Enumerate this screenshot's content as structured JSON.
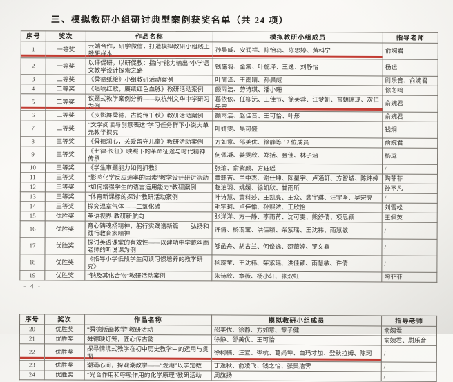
{
  "page": {
    "title": "三、模拟教研小组研讨典型案例获奖名单（共 24 项）",
    "page_number": "- 4 -",
    "accent_color": "#bb2218",
    "underline_note_color": "#bb2218"
  },
  "columns": [
    "序号",
    "奖次",
    "作品名称",
    "模拟教研小组成员",
    "指导老师"
  ],
  "tables": [
    {
      "rows": [
        {
          "seq": "1",
          "award": "一等奖",
          "title": "云端合作，研学微信，打造模拟教研小组线上教研样本",
          "members": "孙晨威、安润祥、陈怡蕊、陈思婷、黄科宁",
          "teacher": "俞婉君",
          "underlined": true
        },
        {
          "seq": "2",
          "award": "一等奖",
          "title": "以评促研，以研促教：指向“能力输出”小学语文教学设计探索之路",
          "members": "钱施羽、金棠、叶旎泽、王逸、刘静怡",
          "teacher": "杨运",
          "underlined": false
        },
        {
          "seq": "3",
          "award": "二等奖",
          "title": "《舜德纸绘》小组教研活动案例",
          "members": "叶旎泽、王雨晴、孙晨威",
          "teacher": "尉乐音、俞婉君",
          "underlined": false
        },
        {
          "seq": "4",
          "award": "二等奖",
          "title": "《唱响红歌，赓续红色血脉》教研活动案例",
          "members": "颜雨洁、劳诗琪、潘小珊",
          "teacher": "徐冬鸣",
          "underlined": false
        },
        {
          "seq": "5",
          "award": "二等奖",
          "title": "议题式教学案例分析——以杭州文华中学研习为例",
          "members": "葛依依、任柳沅、王佳节、徐芙蓉、江梦妍、普朝琼琼、次仁央宗",
          "teacher": "俞婉君",
          "underlined": true
        },
        {
          "seq": "6",
          "award": "二等奖",
          "title": "《皮影舞舜德，古韵传千秋》教研活动案例",
          "members": "颜雨洁、赵佳音、王可怡、叶彤",
          "teacher": "俞婉君",
          "underlined": false
        },
        {
          "seq": "7",
          "award": "二等奖",
          "title": "“文学阅读与创意表达”学习任务群下小说大单元教学探究",
          "members": "叶婧雯、吴可盛",
          "teacher": "钱炯",
          "underlined": false
        },
        {
          "seq": "8",
          "award": "三等奖",
          "title": "《舜德润心，关爱留守儿童》教研活动案例",
          "members": "方如意、邵美优、徐静等 12 位成员",
          "teacher": "俞婉君",
          "underlined": false
        },
        {
          "seq": "9",
          "award": "三等奖",
          "title": "《七律·长征》映照下的革命征途与时代精神传承",
          "members": "何佩凝、姜雯欣、郑括、金佳、林子涵",
          "teacher": "杨运",
          "underlined": false
        },
        {
          "seq": "10",
          "award": "三等奖",
          "title": "《学生审题能力如何抓教》",
          "members": "张瑜、俞紫颜、方珏瑶",
          "teacher": "/",
          "underlined": false
        },
        {
          "seq": "11",
          "award": "三等奖",
          "title": "“影响化学反应速率的因素”教学设计研讨活动",
          "members": "黄韩吉、兰中杰、谢仕坤、陈星宇、卢通轩、方智城、陈炜婷",
          "teacher": "陶菲菲",
          "underlined": false
        },
        {
          "seq": "12",
          "award": "三等奖",
          "title": "“如何增强学生的语言运用能力”教研案例",
          "members": "赵泊羽、姚媛、徐凯欣、甘雨昕",
          "teacher": "孙不凡",
          "underlined": false
        },
        {
          "seq": "13",
          "award": "三等奖",
          "title": "“体育新课标的探讨”教研活动案例",
          "members": "叶诗慧、黄科莎、王凯亮、王众、裴宇琪、汪宇坚、吴宏亮",
          "teacher": "/",
          "underlined": false
        },
        {
          "seq": "14",
          "award": "三等奖",
          "title": "探究温室气体——二氧化碳",
          "members": "毛宇珂、卢佳愉、孙熙浓、王欣怡",
          "teacher": "刘雪松",
          "underlined": false
        },
        {
          "seq": "15",
          "award": "优胜奖",
          "title": "英语视界·教研新航向",
          "members": "张洋洋、方一静、李雨苒、沈可雯、熊舒倩、项思颖",
          "teacher": "王佩英",
          "underlined": false
        },
        {
          "seq": "16",
          "award": "优胜奖",
          "title": "育心铸魂扬精神，躬行实践谱新篇——弘扬和践行教育家精神",
          "members": "许倩、杨琬莹、洪佳颖、柴紫瑶、王沈祎、雨慧敏",
          "teacher": "/",
          "underlined": false
        },
        {
          "seq": "17",
          "award": "优胜奖",
          "title": "探讨英语课堂的有效性——以建功中学戴丝雨老师的听说课为例",
          "members": "郇函舟、胡古兰、何俊逸、邵薇婷、罗文鑫",
          "teacher": "/",
          "underlined": false
        },
        {
          "seq": "18",
          "award": "优胜奖",
          "title": "《指导小学低段学生阅读习惯培养的教学研究》",
          "members": "杨琬莹、王沈祎、柴紫瑶、洪佳颖、雨慧敏、许倩",
          "teacher": "/",
          "underlined": false
        },
        {
          "seq": "19",
          "award": "优胜奖",
          "title": "“钠及其化合物”教研活动案例",
          "members": "朱诗欣、章薇、杨小轩、张双虹",
          "teacher": "陶菲菲",
          "underlined": false
        }
      ]
    },
    {
      "rows": [
        {
          "seq": "20",
          "award": "优胜奖",
          "title": "“舜德版画教学”教研活动",
          "members": "邵美优、徐静、方如意、章子健",
          "teacher": "俞婉君",
          "underlined": false
        },
        {
          "seq": "21",
          "award": "优胜奖",
          "title": "舜德映灯笼，匠心传古韵",
          "members": "徐静、邵美优、王可怡",
          "teacher": "俞婉君、尉乐音",
          "underlined": false
        },
        {
          "seq": "22",
          "award": "优胜奖",
          "title": "探寻情境式教学在初中历史教学中的运用与贯彻",
          "members": "徐柯楠、汪宣、岑杭、葛尚坤、白玛才加、登秋拉姆、陈珂",
          "teacher": "/",
          "underlined": true
        },
        {
          "seq": "23",
          "award": "优胜奖",
          "title": "潮涌心间，探观潮教学——“观潮”以学定教",
          "members": "丁逸秋、俞凌飞、钱之怡、张吴洁霁",
          "teacher": "/",
          "underlined": false
        },
        {
          "seq": "24",
          "award": "优胜奖",
          "title": "“光合作用和呼吸作用的化学原理”教研活动",
          "members": "周旗扬",
          "teacher": "/",
          "underlined": false
        }
      ]
    }
  ]
}
